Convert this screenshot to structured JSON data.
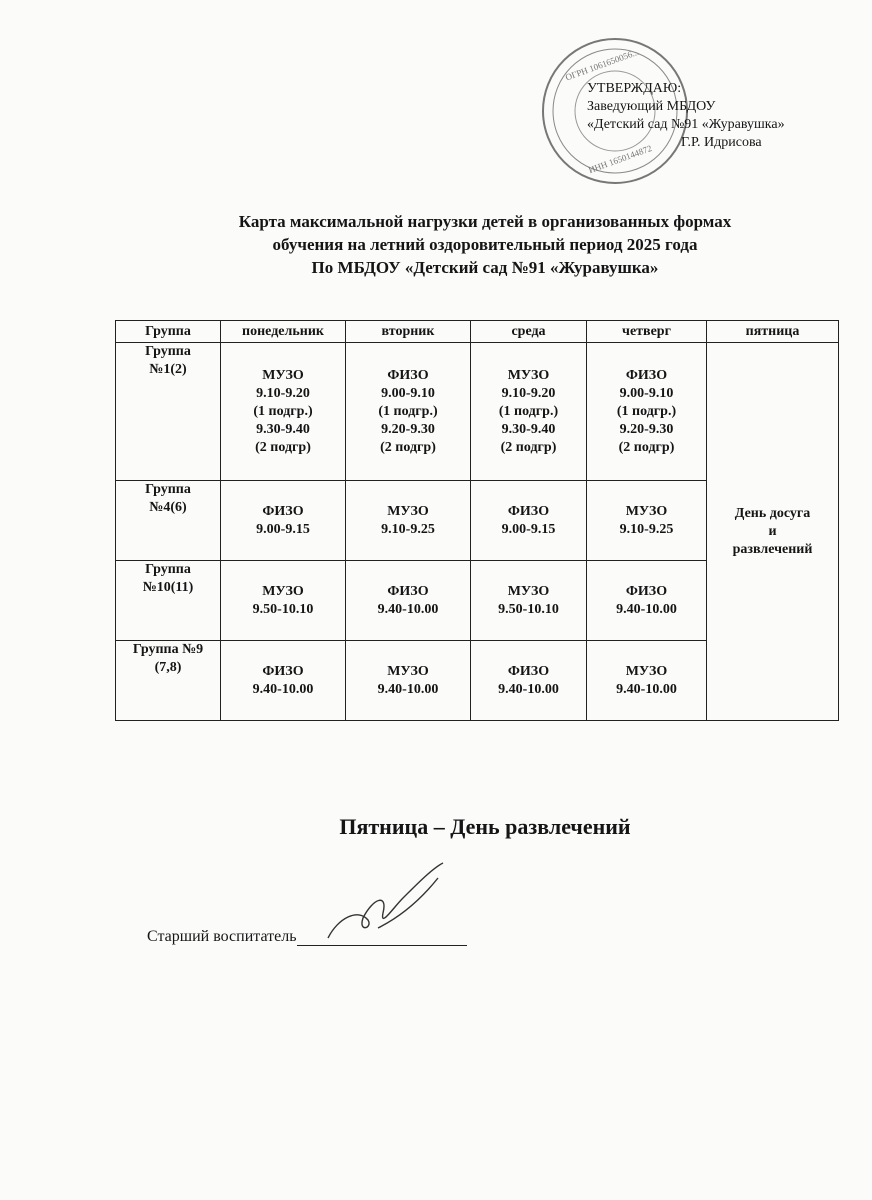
{
  "approval": {
    "heading": "УТВЕРЖДАЮ:",
    "position": "Заведующий МБДОУ",
    "org": "«Детский сад №91 «Журавушка»",
    "signer": "Г.Р. Идрисова",
    "stamp_text": "ОГРН 1061650056... ИНН 1650144872 «Журавушка»"
  },
  "title": {
    "line1": "Карта максимальной нагрузки детей в организованных формах",
    "line2": "обучения на летний оздоровительный период 2025 года",
    "line3": "По МБДОУ «Детский сад №91 «Журавушка»"
  },
  "table": {
    "headers": [
      "Группа",
      "понедельник",
      "вторник",
      "среда",
      "четверг",
      "пятница"
    ],
    "friday": [
      "День досуга",
      "и",
      "развлечений"
    ],
    "rows": [
      {
        "group": [
          "Группа",
          "№1(2)"
        ],
        "cells": [
          [
            "МУЗО",
            "9.10-9.20",
            "(1 подгр.)",
            "9.30-9.40",
            "(2 подгр)"
          ],
          [
            "ФИЗО",
            "9.00-9.10",
            "(1 подгр.)",
            "9.20-9.30",
            "(2 подгр)"
          ],
          [
            "МУЗО",
            "9.10-9.20",
            "(1 подгр.)",
            "9.30-9.40",
            "(2 подгр)"
          ],
          [
            "ФИЗО",
            "9.00-9.10",
            "(1 подгр.)",
            "9.20-9.30",
            "(2 подгр)"
          ]
        ]
      },
      {
        "group": [
          "Группа",
          "№4(6)"
        ],
        "cells": [
          [
            "ФИЗО",
            "9.00-9.15"
          ],
          [
            "МУЗО",
            "9.10-9.25"
          ],
          [
            "ФИЗО",
            "9.00-9.15"
          ],
          [
            "МУЗО",
            "9.10-9.25"
          ]
        ]
      },
      {
        "group": [
          "Группа",
          "№10(11)"
        ],
        "cells": [
          [
            "МУЗО",
            "9.50-10.10"
          ],
          [
            "ФИЗО",
            "9.40-10.00"
          ],
          [
            "МУЗО",
            "9.50-10.10"
          ],
          [
            "ФИЗО",
            "9.40-10.00"
          ]
        ]
      },
      {
        "group": [
          "Группа №9",
          "(7,8)"
        ],
        "cells": [
          [
            "ФИЗО",
            "9.40-10.00"
          ],
          [
            "МУЗО",
            "9.40-10.00"
          ],
          [
            "ФИЗО",
            "9.40-10.00"
          ],
          [
            "МУЗО",
            "9.40-10.00"
          ]
        ]
      }
    ]
  },
  "footer": {
    "friday_note": "Пятница – День развлечений",
    "senior_label": "Старший воспитатель"
  }
}
